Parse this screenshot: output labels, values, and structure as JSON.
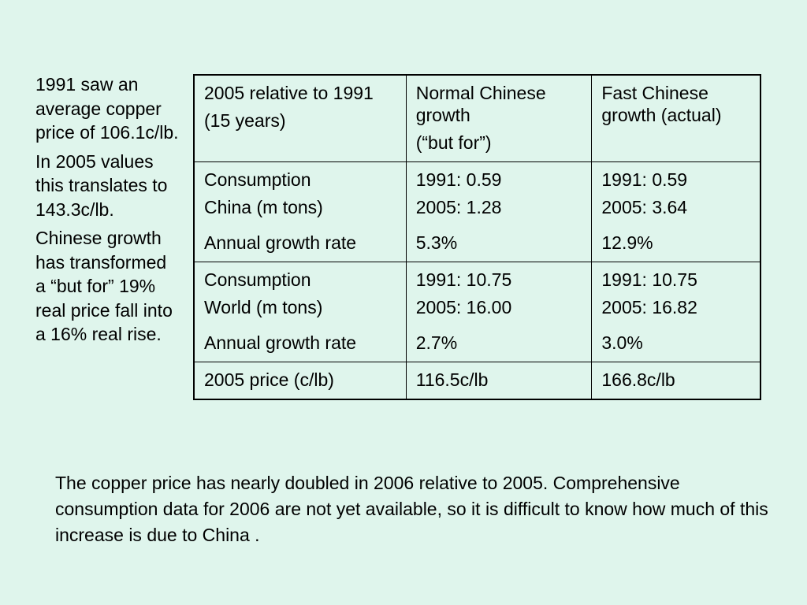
{
  "side_notes": [
    "1991 saw an average copper price of 106.1c/lb.",
    "In 2005 values this translates to 143.3c/lb.",
    "Chinese growth has transformed a “but for” 19% real price fall into a 16% real rise."
  ],
  "table": {
    "header": {
      "col1": [
        "2005 relative to 1991",
        "(15 years)"
      ],
      "col2": [
        "Normal Chinese growth",
        "(“but for”)"
      ],
      "col3": [
        "Fast Chinese growth (actual)"
      ]
    },
    "rows": [
      {
        "label": [
          "Consumption",
          "China (m tons)",
          "Annual growth rate"
        ],
        "normal": [
          "1991: 0.59",
          "2005: 1.28",
          "5.3%"
        ],
        "fast": [
          "1991: 0.59",
          "2005: 3.64",
          "12.9%"
        ]
      },
      {
        "label": [
          "Consumption",
          "World (m tons)",
          "Annual growth rate"
        ],
        "normal": [
          "1991: 10.75",
          "2005: 16.00",
          "2.7%"
        ],
        "fast": [
          "1991: 10.75",
          "2005: 16.82",
          "3.0%"
        ]
      },
      {
        "label": [
          "2005 price (c/lb)"
        ],
        "normal": [
          "116.5c/lb"
        ],
        "fast": [
          "166.8c/lb"
        ]
      }
    ]
  },
  "bottom_text": "The copper price has nearly doubled in 2006 relative to 2005. Comprehensive consumption data for 2006 are not yet available, so it is difficult to know how much of this increase is due to China ."
}
